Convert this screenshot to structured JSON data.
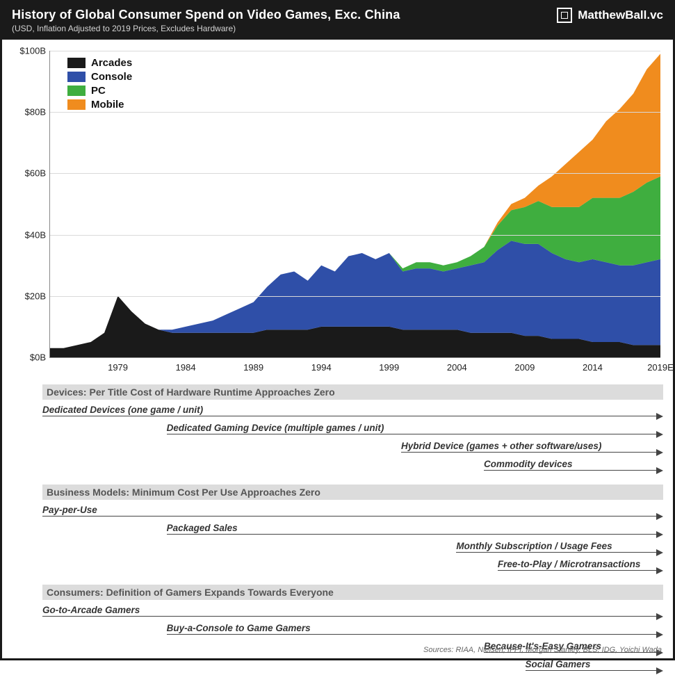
{
  "header": {
    "title": "History of Global Consumer Spend on Video Games, Exc. China",
    "subtitle": "(USD, Inflation Adjusted to 2019 Prices, Excludes Hardware)",
    "brand": "MatthewBall.vc"
  },
  "chart": {
    "type": "stacked-area",
    "background_color": "#ffffff",
    "grid_color": "#d9d9d9",
    "axis_color": "#888888",
    "x_start": 1974,
    "x_end": 2019,
    "x_ticks": [
      1979,
      1984,
      1989,
      1994,
      1999,
      2004,
      2009,
      2014
    ],
    "x_last_label": "2019E",
    "y_min": 0,
    "y_max": 100,
    "y_ticks": [
      0,
      20,
      40,
      60,
      80,
      100
    ],
    "y_prefix": "$",
    "y_suffix": "B",
    "label_fontsize": 13,
    "legend_fontsize": 15,
    "series": [
      {
        "name": "Arcades",
        "color": "#1a1a1a"
      },
      {
        "name": "Console",
        "color": "#2f4fa8"
      },
      {
        "name": "PC",
        "color": "#3fae3f"
      },
      {
        "name": "Mobile",
        "color": "#f08c1e"
      }
    ],
    "years": [
      1974,
      1975,
      1976,
      1977,
      1978,
      1979,
      1980,
      1981,
      1982,
      1983,
      1984,
      1985,
      1986,
      1987,
      1988,
      1989,
      1990,
      1991,
      1992,
      1993,
      1994,
      1995,
      1996,
      1997,
      1998,
      1999,
      2000,
      2001,
      2002,
      2003,
      2004,
      2005,
      2006,
      2007,
      2008,
      2009,
      2010,
      2011,
      2012,
      2013,
      2014,
      2015,
      2016,
      2017,
      2018,
      2019
    ],
    "arcades": [
      3,
      3,
      4,
      5,
      8,
      20,
      15,
      11,
      9,
      8,
      8,
      8,
      8,
      8,
      8,
      8,
      9,
      9,
      9,
      9,
      10,
      10,
      10,
      10,
      10,
      10,
      9,
      9,
      9,
      9,
      9,
      8,
      8,
      8,
      8,
      7,
      7,
      6,
      6,
      6,
      5,
      5,
      5,
      4,
      4,
      4
    ],
    "console": [
      0,
      0,
      0,
      0,
      0,
      0,
      0,
      0,
      0,
      1,
      2,
      3,
      4,
      6,
      8,
      10,
      14,
      18,
      19,
      16,
      20,
      18,
      23,
      24,
      22,
      24,
      19,
      20,
      20,
      19,
      20,
      22,
      23,
      27,
      30,
      30,
      30,
      28,
      26,
      25,
      27,
      26,
      25,
      26,
      27,
      28
    ],
    "pc": [
      0,
      0,
      0,
      0,
      0,
      0,
      0,
      0,
      0,
      0,
      0,
      0,
      0,
      0,
      0,
      0,
      0,
      0,
      0,
      0,
      0,
      0,
      0,
      0,
      0,
      0,
      1,
      2,
      2,
      2,
      2,
      3,
      5,
      8,
      10,
      12,
      14,
      15,
      17,
      18,
      20,
      21,
      22,
      24,
      26,
      27
    ],
    "mobile": [
      0,
      0,
      0,
      0,
      0,
      0,
      0,
      0,
      0,
      0,
      0,
      0,
      0,
      0,
      0,
      0,
      0,
      0,
      0,
      0,
      0,
      0,
      0,
      0,
      0,
      0,
      0,
      0,
      0,
      0,
      0,
      0,
      0,
      1,
      2,
      3,
      5,
      10,
      14,
      18,
      19,
      25,
      29,
      32,
      37,
      40
    ]
  },
  "annotations": {
    "x_start": 1974,
    "x_end": 2019,
    "sections": [
      {
        "heading": "Devices: Per Title Cost of Hardware Runtime Approaches Zero",
        "lanes": [
          {
            "label": "Dedicated Devices (one game / unit)",
            "start": 1974,
            "end": 2019
          },
          {
            "label": "Dedicated Gaming Device (multiple games / unit)",
            "start": 1983,
            "end": 2019
          },
          {
            "label": "Hybrid Device (games + other software/uses)",
            "start": 2000,
            "end": 2019
          },
          {
            "label": "Commodity devices",
            "start": 2006,
            "end": 2019
          }
        ]
      },
      {
        "heading": "Business Models: Minimum Cost Per Use Approaches Zero",
        "lanes": [
          {
            "label": "Pay-per-Use",
            "start": 1974,
            "end": 2019
          },
          {
            "label": "Packaged Sales",
            "start": 1983,
            "end": 2019
          },
          {
            "label": "Monthly Subscription / Usage Fees",
            "start": 2004,
            "end": 2019
          },
          {
            "label": "Free-to-Play / Microtransactions",
            "start": 2007,
            "end": 2019
          }
        ]
      },
      {
        "heading": "Consumers: Definition of Gamers Expands Towards Everyone",
        "lanes": [
          {
            "label": "Go-to-Arcade Gamers",
            "start": 1974,
            "end": 2019
          },
          {
            "label": "Buy-a-Console to Game Gamers",
            "start": 1983,
            "end": 2019
          },
          {
            "label": "Because-It's-Easy Gamers",
            "start": 2006,
            "end": 2019
          },
          {
            "label": "Social Gamers",
            "start": 2009,
            "end": 2019
          }
        ]
      }
    ]
  },
  "sources": "Sources: RIAA, Nielsen, IFPI, Morgan Stanley, BLS, IDG, Yoichi Wada"
}
